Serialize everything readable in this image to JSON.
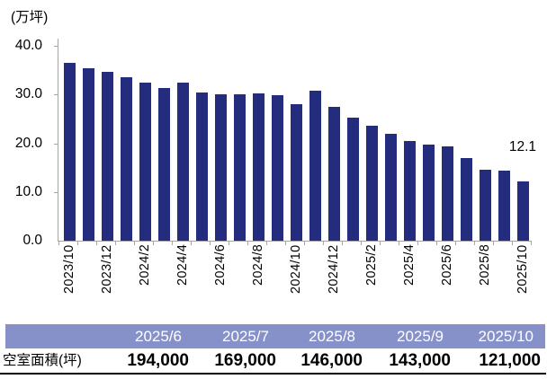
{
  "chart": {
    "unit_label": "(万坪)",
    "last_point_label": "12.1"
  },
  "chart_data": {
    "type": "bar",
    "title": "",
    "ylabel": "(万坪)",
    "xlabel": "",
    "ylim": [
      0,
      40
    ],
    "yticks": [
      40.0,
      30.0,
      20.0,
      10.0,
      0.0
    ],
    "ytick_labels": [
      "40.0",
      "30.0",
      "20.0",
      "10.0",
      "0.0"
    ],
    "grid": false,
    "legend": false,
    "categories": [
      "2023/10",
      "2023/11",
      "2023/12",
      "2024/1",
      "2024/2",
      "2024/3",
      "2024/4",
      "2024/5",
      "2024/6",
      "2024/7",
      "2024/8",
      "2024/9",
      "2024/10",
      "2024/11",
      "2024/12",
      "2025/1",
      "2025/2",
      "2025/3",
      "2025/4",
      "2025/5",
      "2025/6",
      "2025/7",
      "2025/8",
      "2025/9",
      "2025/10"
    ],
    "values": [
      36.6,
      35.5,
      34.6,
      33.5,
      32.4,
      31.3,
      32.5,
      30.4,
      30.1,
      30.1,
      30.3,
      29.9,
      28.1,
      30.9,
      27.5,
      25.2,
      23.7,
      21.9,
      20.5,
      19.8,
      19.4,
      16.9,
      14.6,
      14.3,
      12.1
    ],
    "shown_x_tick_labels": [
      "2023/10",
      "2023/12",
      "2024/2",
      "2024/4",
      "2024/6",
      "2024/8",
      "2024/10",
      "2024/12",
      "2025/2",
      "2025/4",
      "2025/6",
      "2025/8",
      "2025/10"
    ],
    "annotation": {
      "text": "12.1",
      "category": "2025/10",
      "value": 12.1
    }
  },
  "table": {
    "row_label": "空室面積(坪)",
    "columns": [
      "2025/6",
      "2025/7",
      "2025/8",
      "2025/9",
      "2025/10"
    ],
    "values": [
      "194,000",
      "169,000",
      "146,000",
      "143,000",
      "121,000"
    ]
  },
  "colors": {
    "bar": "#242c7d",
    "axis": "#a6a6a6",
    "text": "#000000",
    "table_header_bg": "#8691c9",
    "table_header_text": "#ffffff",
    "background": "#ffffff"
  }
}
